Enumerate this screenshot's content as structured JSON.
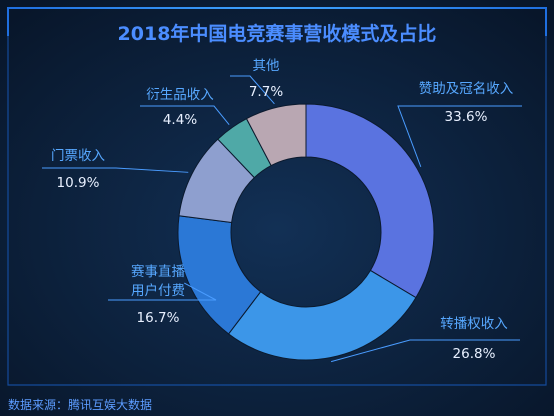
{
  "chart_data": {
    "type": "pie",
    "title": "2018年中国电竞赛事营收模式及占比",
    "categories": [
      "赞助及冠名收入",
      "转播权收入",
      "赛事直播用户付费",
      "门票收入",
      "衍生品收入",
      "其他"
    ],
    "values": [
      33.6,
      26.8,
      16.7,
      10.9,
      4.4,
      7.7
    ],
    "value_labels": [
      "33.6%",
      "26.8%",
      "16.7%",
      "10.9%",
      "4.4%",
      "7.7%"
    ],
    "label_lines": [
      [
        "赞助及冠名收入"
      ],
      [
        "转播权收入"
      ],
      [
        "赛事直播",
        "用户付费"
      ],
      [
        "门票收入"
      ],
      [
        "衍生品收入"
      ],
      [
        "其他"
      ]
    ],
    "colors": [
      "#5a73e0",
      "#3c96e8",
      "#2b78d6",
      "#8e9fcf",
      "#4fa9a7",
      "#b9a7b2"
    ],
    "donut": true,
    "legend": "none"
  },
  "source": "数据来源：腾讯互娱大数据"
}
